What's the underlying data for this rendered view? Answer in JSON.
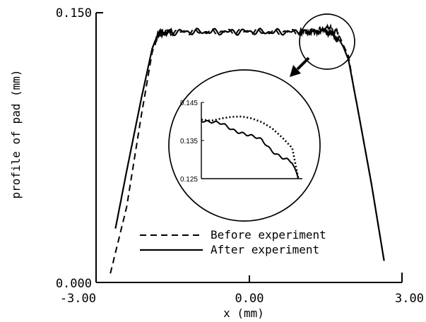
{
  "chart_data": {
    "type": "line",
    "xlabel": "x (mm)",
    "ylabel": "profile of pad (mm)",
    "xlim": [
      -3.0,
      3.0
    ],
    "ylim": [
      0.0,
      0.15
    ],
    "xticks": [
      "-3.00",
      "0.00",
      "3.00"
    ],
    "yticks": [
      "0.000",
      "0.150"
    ],
    "legend": {
      "placement": "bottom-center"
    },
    "series": [
      {
        "name": "Before experiment",
        "style": "dashed",
        "x": [
          -2.72,
          -2.4,
          -2.1,
          -1.9,
          -1.8,
          -1.7,
          -1.5,
          -1.0,
          -0.5,
          0.0,
          0.5,
          1.0,
          1.3,
          1.5,
          1.6,
          1.7,
          1.78,
          1.85,
          1.95,
          2.05,
          2.2,
          2.4,
          2.65
        ],
        "y": [
          0.005,
          0.042,
          0.095,
          0.128,
          0.137,
          0.1388,
          0.1392,
          0.1395,
          0.1393,
          0.1395,
          0.1393,
          0.1395,
          0.1397,
          0.1413,
          0.1413,
          0.1398,
          0.1365,
          0.132,
          0.126,
          0.109,
          0.086,
          0.055,
          0.012
        ]
      },
      {
        "name": "After experiment",
        "style": "solid",
        "x": [
          -2.62,
          -2.4,
          -2.1,
          -1.9,
          -1.8,
          -1.7,
          -1.5,
          -1.0,
          -0.5,
          0.0,
          0.5,
          1.0,
          1.3,
          1.5,
          1.6,
          1.7,
          1.78,
          1.85,
          1.95,
          2.05,
          2.2,
          2.4,
          2.65
        ],
        "y": [
          0.03,
          0.062,
          0.104,
          0.13,
          0.1375,
          0.139,
          0.1392,
          0.1395,
          0.1393,
          0.1395,
          0.1393,
          0.1393,
          0.1395,
          0.14,
          0.1385,
          0.1365,
          0.1345,
          0.131,
          0.124,
          0.109,
          0.086,
          0.055,
          0.012
        ]
      }
    ],
    "inset": {
      "yticks": [
        "0.145",
        "0.135",
        "0.125"
      ],
      "ylim": [
        0.125,
        0.145
      ],
      "xlim": [
        1.3,
        1.8
      ],
      "series": [
        {
          "style": "dotted",
          "x": [
            1.3,
            1.35,
            1.4,
            1.45,
            1.5,
            1.55,
            1.6,
            1.65,
            1.7,
            1.75,
            1.78
          ],
          "y": [
            0.1405,
            0.1402,
            0.1408,
            0.1412,
            0.1413,
            0.1408,
            0.1398,
            0.1382,
            0.1358,
            0.133,
            0.125
          ]
        },
        {
          "style": "solid",
          "x": [
            1.3,
            1.35,
            1.4,
            1.45,
            1.5,
            1.55,
            1.6,
            1.65,
            1.7,
            1.75,
            1.78
          ],
          "y": [
            0.1405,
            0.14,
            0.1392,
            0.138,
            0.1372,
            0.136,
            0.135,
            0.1325,
            0.1305,
            0.129,
            0.125
          ]
        }
      ]
    }
  }
}
